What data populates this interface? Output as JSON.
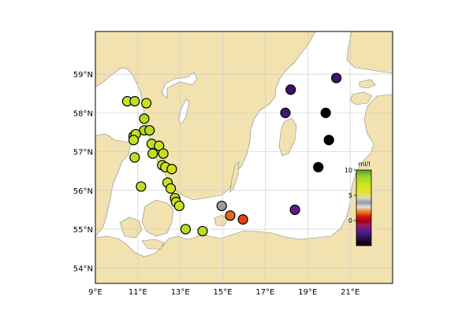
{
  "map": {
    "lon_range": [
      9,
      23
    ],
    "lat_range": [
      53.6,
      60.1
    ],
    "lon_ticks": [
      {
        "value": 9,
        "label": "9°E"
      },
      {
        "value": 11,
        "label": "11°E"
      },
      {
        "value": 13,
        "label": "13°E"
      },
      {
        "value": 15,
        "label": "15°E"
      },
      {
        "value": 17,
        "label": "17°E"
      },
      {
        "value": 19,
        "label": "19°E"
      },
      {
        "value": 21,
        "label": "21°E"
      }
    ],
    "lat_ticks": [
      {
        "value": 54,
        "label": "54°N"
      },
      {
        "value": 55,
        "label": "55°N"
      },
      {
        "value": 56,
        "label": "56°N"
      },
      {
        "value": 57,
        "label": "57°N"
      },
      {
        "value": 58,
        "label": "58°N"
      },
      {
        "value": 59,
        "label": "59°N"
      }
    ],
    "colors": {
      "land": "#f2e2b0",
      "sea": "#ffffff",
      "grid": "#c8c8c8",
      "coast": "#888888"
    },
    "colorbar": {
      "unit": "ml/l",
      "ticks": [
        {
          "value": 10,
          "label": "10"
        },
        {
          "value": 5,
          "label": "5"
        },
        {
          "value": 0,
          "label": "0"
        }
      ],
      "range": [
        -5,
        10
      ]
    },
    "stations": [
      {
        "lon": 10.5,
        "lat": 58.3,
        "value": 7.0
      },
      {
        "lon": 10.85,
        "lat": 58.3,
        "value": 7.5
      },
      {
        "lon": 11.4,
        "lat": 58.25,
        "value": 7.3
      },
      {
        "lon": 11.3,
        "lat": 57.85,
        "value": 8.0
      },
      {
        "lon": 11.3,
        "lat": 57.55,
        "value": 8.2
      },
      {
        "lon": 11.55,
        "lat": 57.55,
        "value": 8.0
      },
      {
        "lon": 10.8,
        "lat": 57.4,
        "value": 7.5
      },
      {
        "lon": 10.9,
        "lat": 57.45,
        "value": 7.5
      },
      {
        "lon": 10.8,
        "lat": 57.3,
        "value": 7.3
      },
      {
        "lon": 11.65,
        "lat": 57.2,
        "value": 7.5
      },
      {
        "lon": 12.0,
        "lat": 57.15,
        "value": 7.2
      },
      {
        "lon": 11.7,
        "lat": 56.95,
        "value": 7.5
      },
      {
        "lon": 12.2,
        "lat": 56.95,
        "value": 7.5
      },
      {
        "lon": 10.85,
        "lat": 56.85,
        "value": 7.6
      },
      {
        "lon": 12.15,
        "lat": 56.65,
        "value": 7.3
      },
      {
        "lon": 12.3,
        "lat": 56.6,
        "value": 7.0
      },
      {
        "lon": 12.6,
        "lat": 56.55,
        "value": 7.2
      },
      {
        "lon": 12.4,
        "lat": 56.2,
        "value": 7.2
      },
      {
        "lon": 12.55,
        "lat": 56.05,
        "value": 7.0
      },
      {
        "lon": 11.15,
        "lat": 56.1,
        "value": 7.5
      },
      {
        "lon": 12.75,
        "lat": 55.8,
        "value": 7.5
      },
      {
        "lon": 12.8,
        "lat": 55.7,
        "value": 7.2
      },
      {
        "lon": 12.95,
        "lat": 55.6,
        "value": 7.3
      },
      {
        "lon": 13.25,
        "lat": 55.0,
        "value": 7.7
      },
      {
        "lon": 14.05,
        "lat": 54.95,
        "value": 7.8
      },
      {
        "lon": 14.95,
        "lat": 55.6,
        "value": 3.5
      },
      {
        "lon": 15.35,
        "lat": 55.35,
        "value": 1.5
      },
      {
        "lon": 15.95,
        "lat": 55.25,
        "value": 1.2
      },
      {
        "lon": 18.4,
        "lat": 55.5,
        "value": -2.0
      },
      {
        "lon": 18.2,
        "lat": 58.6,
        "value": -3.5
      },
      {
        "lon": 17.95,
        "lat": 58.0,
        "value": -3.0
      },
      {
        "lon": 20.35,
        "lat": 58.9,
        "value": -3.5
      },
      {
        "lon": 19.85,
        "lat": 58.0,
        "value": -5.0
      },
      {
        "lon": 20.0,
        "lat": 57.3,
        "value": -5.0
      },
      {
        "lon": 19.5,
        "lat": 56.6,
        "value": -5.0
      }
    ]
  }
}
